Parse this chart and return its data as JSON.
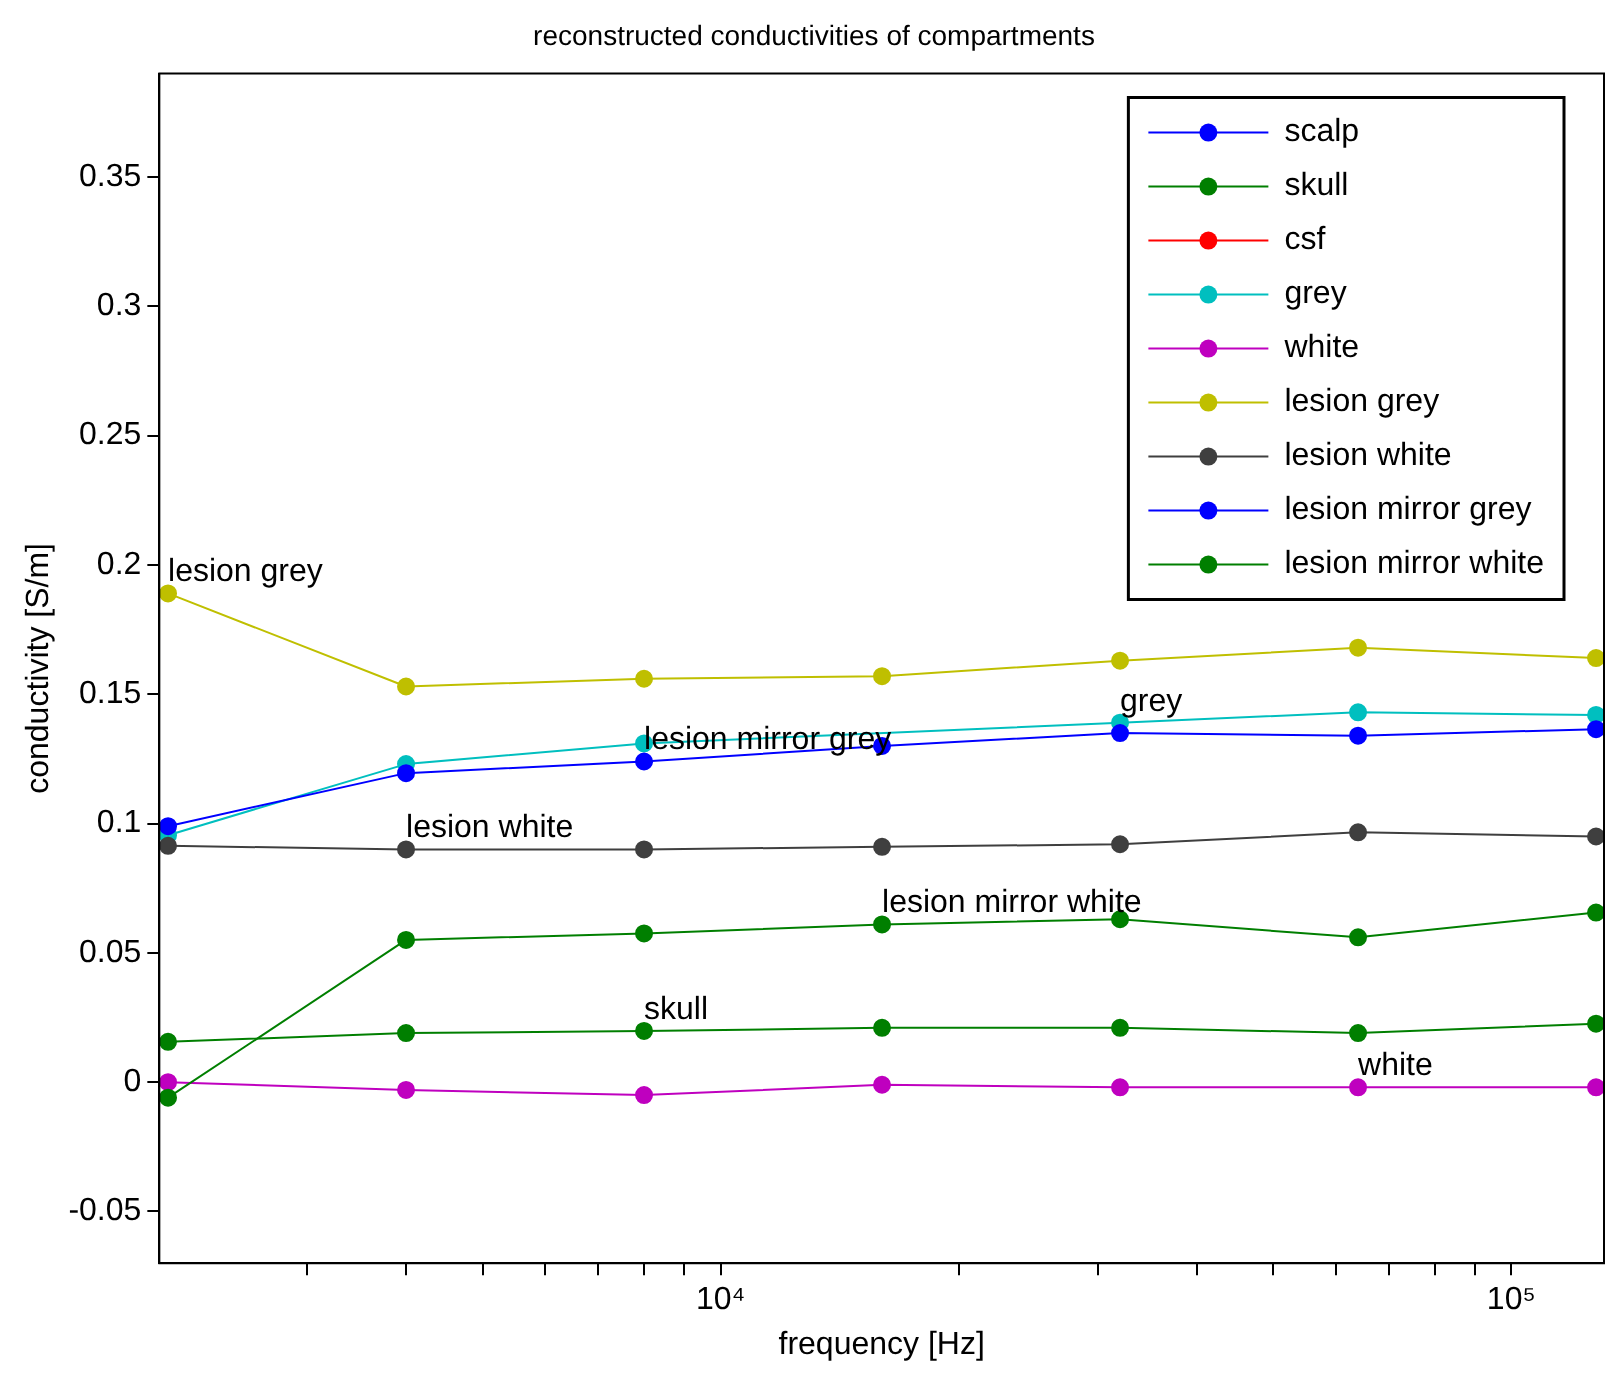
{
  "chart_data": {
    "type": "line",
    "title": "reconstructed conductivities of compartments",
    "xlabel": "frequency [Hz]",
    "ylabel": "conductivity [S/m]",
    "x": [
      2000,
      4000,
      8000,
      16000,
      32000,
      64000,
      128000
    ],
    "log": "x",
    "xlim": [
      1950,
      131000
    ],
    "ylim": [
      -0.07,
      0.39
    ],
    "xticks": [
      {
        "value": 3000,
        "label": null
      },
      {
        "value": 4000,
        "label": null
      },
      {
        "value": 5000,
        "label": null
      },
      {
        "value": 6000,
        "label": null
      },
      {
        "value": 7000,
        "label": null
      },
      {
        "value": 8000,
        "label": null
      },
      {
        "value": 9000,
        "label": null
      },
      {
        "value": 10000,
        "label": "10⁴"
      },
      {
        "value": 20000,
        "label": null
      },
      {
        "value": 30000,
        "label": null
      },
      {
        "value": 40000,
        "label": null
      },
      {
        "value": 50000,
        "label": null
      },
      {
        "value": 60000,
        "label": null
      },
      {
        "value": 70000,
        "label": null
      },
      {
        "value": 80000,
        "label": null
      },
      {
        "value": 90000,
        "label": null
      },
      {
        "value": 100000,
        "label": "10⁵"
      }
    ],
    "yticks": [
      -0.05,
      0,
      0.05,
      0.1,
      0.15,
      0.2,
      0.25,
      0.3,
      0.35
    ],
    "grid": false,
    "legend": "top right",
    "marker": "circle",
    "line_style": "solid",
    "series": [
      {
        "name": "scalp",
        "color": "#0000ff",
        "values": [
          null,
          null,
          null,
          null,
          null,
          null,
          null
        ]
      },
      {
        "name": "skull",
        "color": "#007f00",
        "values": [
          0.0156,
          0.019,
          0.0198,
          0.021,
          0.021,
          0.019,
          0.0226
        ]
      },
      {
        "name": "csf",
        "color": "#ff0000",
        "values": [
          null,
          null,
          null,
          null,
          null,
          null,
          null
        ]
      },
      {
        "name": "grey",
        "color": "#00bfbf",
        "values": [
          0.0955,
          0.123,
          0.131,
          null,
          0.139,
          0.143,
          0.142
        ]
      },
      {
        "name": "white",
        "color": "#bf00bf",
        "values": [
          0,
          -0.003,
          -0.005,
          -0.001,
          -0.002,
          -0.002,
          -0.002
        ]
      },
      {
        "name": "lesion grey",
        "color": "#bfbf00",
        "values": [
          0.189,
          0.153,
          0.156,
          0.157,
          0.163,
          0.168,
          0.164
        ]
      },
      {
        "name": "lesion white",
        "color": "#3f3f3f",
        "values": [
          0.0914,
          0.09,
          0.09,
          0.091,
          0.092,
          0.0966,
          0.095
        ]
      },
      {
        "name": "lesion mirror grey",
        "color": "#0000ff",
        "values": [
          0.099,
          0.1195,
          0.124,
          0.13,
          0.135,
          0.134,
          0.1365
        ]
      },
      {
        "name": "lesion mirror white",
        "color": "#007f00",
        "values": [
          -0.006,
          0.055,
          0.0575,
          0.061,
          0.063,
          0.056,
          0.0656
        ]
      }
    ],
    "annotations": [
      {
        "text": "lesion grey",
        "x": 2000,
        "y": 0.189
      },
      {
        "text": "lesion mirror grey",
        "x": 8000,
        "y": 0.124
      },
      {
        "text": "grey",
        "x": 32000,
        "y": 0.139
      },
      {
        "text": "lesion white",
        "x": 4000,
        "y": 0.09
      },
      {
        "text": "lesion mirror white",
        "x": 16000,
        "y": 0.061
      },
      {
        "text": "skull",
        "x": 8000,
        "y": 0.0198
      },
      {
        "text": "white",
        "x": 64000,
        "y": -0.002
      }
    ]
  }
}
